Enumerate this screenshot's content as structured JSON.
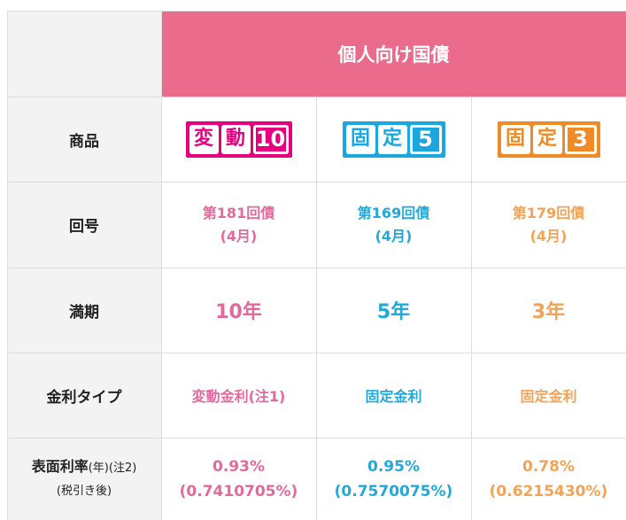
{
  "header": {
    "title": "個人向け国債"
  },
  "rows": {
    "product": {
      "label": "商品"
    },
    "issue": {
      "label": "回号"
    },
    "maturity": {
      "label": "満期"
    },
    "rate_type": {
      "label": "金利タイプ"
    },
    "rate": {
      "label_main": "表面利率",
      "label_year": "(年)",
      "label_note": "(注2)",
      "label_sub": "(税引き後)"
    }
  },
  "columns": [
    {
      "logo": {
        "char1": "変",
        "char2": "動",
        "num": "10"
      },
      "issue_line1": "第181回債",
      "issue_line2": "(4月)",
      "maturity": "10年",
      "rate_type": "変動金利(注1)",
      "rate": "0.93%",
      "rate_after_tax": "(0.7410705%)"
    },
    {
      "logo": {
        "char1": "固",
        "char2": "定",
        "num": "5"
      },
      "issue_line1": "第169回債",
      "issue_line2": "(4月)",
      "maturity": "5年",
      "rate_type": "固定金利",
      "rate": "0.95%",
      "rate_after_tax": "(0.7570075%)"
    },
    {
      "logo": {
        "char1": "固",
        "char2": "定",
        "num": "3"
      },
      "issue_line1": "第179回債",
      "issue_line2": "(4月)",
      "maturity": "3年",
      "rate_type": "固定金利",
      "rate": "0.78%",
      "rate_after_tax": "(0.6215430%)"
    }
  ],
  "colors": {
    "header": "#ea6b8b",
    "pink": "#e06a9b",
    "blue": "#20a9d9",
    "orange": "#f2a356"
  }
}
